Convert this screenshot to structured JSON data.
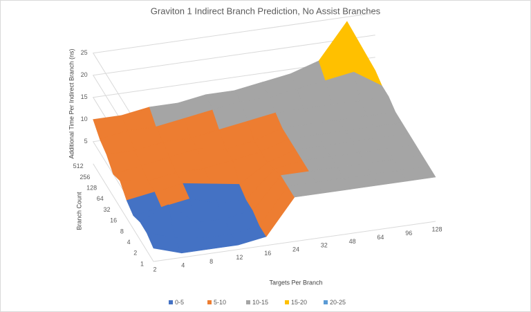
{
  "chart_data": {
    "type": "surface",
    "title": "Graviton 1 Indirect Branch Prediction, No Assist Branches",
    "xlabel": "Targets Per Branch",
    "ylabel": "Branch Count",
    "zlabel": "Additional Time Per Indirect Branch (ns)",
    "categories": [
      "2",
      "4",
      "8",
      "12",
      "16",
      "24",
      "32",
      "48",
      "64",
      "96",
      "128"
    ],
    "depth_categories": [
      "1",
      "2",
      "4",
      "8",
      "16",
      "32",
      "64",
      "128",
      "256",
      "512"
    ],
    "values": [
      [
        3,
        1,
        1,
        1,
        2,
        10,
        10,
        10,
        10,
        10,
        10
      ],
      [
        4,
        2,
        1,
        1,
        2,
        10,
        10,
        10,
        10,
        10,
        10
      ],
      [
        4,
        7,
        2,
        2,
        3,
        10,
        10,
        10,
        10,
        10,
        10
      ],
      [
        3,
        4,
        5,
        3,
        3,
        9,
        10,
        10,
        10,
        10,
        10
      ],
      [
        4,
        5,
        6,
        5,
        4,
        8,
        10,
        10,
        10,
        10,
        10
      ],
      [
        6,
        5,
        6,
        6,
        7,
        8,
        10,
        10,
        10,
        10,
        10
      ],
      [
        5,
        6,
        7,
        8,
        7,
        8,
        10,
        10,
        10,
        10,
        10
      ],
      [
        7,
        7,
        8,
        8,
        9,
        10,
        11,
        11,
        11,
        11,
        11
      ],
      [
        8,
        9,
        9,
        10,
        11,
        12,
        12,
        13,
        14,
        15,
        11
      ],
      [
        10,
        10,
        11,
        11,
        12,
        12,
        13,
        14,
        16,
        24,
        12
      ]
    ],
    "zlim": [
      0,
      25
    ],
    "zticks": [
      5,
      10,
      15,
      20,
      25
    ],
    "legend": [
      {
        "name": "0-5",
        "color": "#4472c4"
      },
      {
        "name": "5-10",
        "color": "#ed7d31"
      },
      {
        "name": "10-15",
        "color": "#a5a5a5"
      },
      {
        "name": "15-20",
        "color": "#ffc000"
      },
      {
        "name": "20-25",
        "color": "#5b9bd5"
      }
    ]
  }
}
